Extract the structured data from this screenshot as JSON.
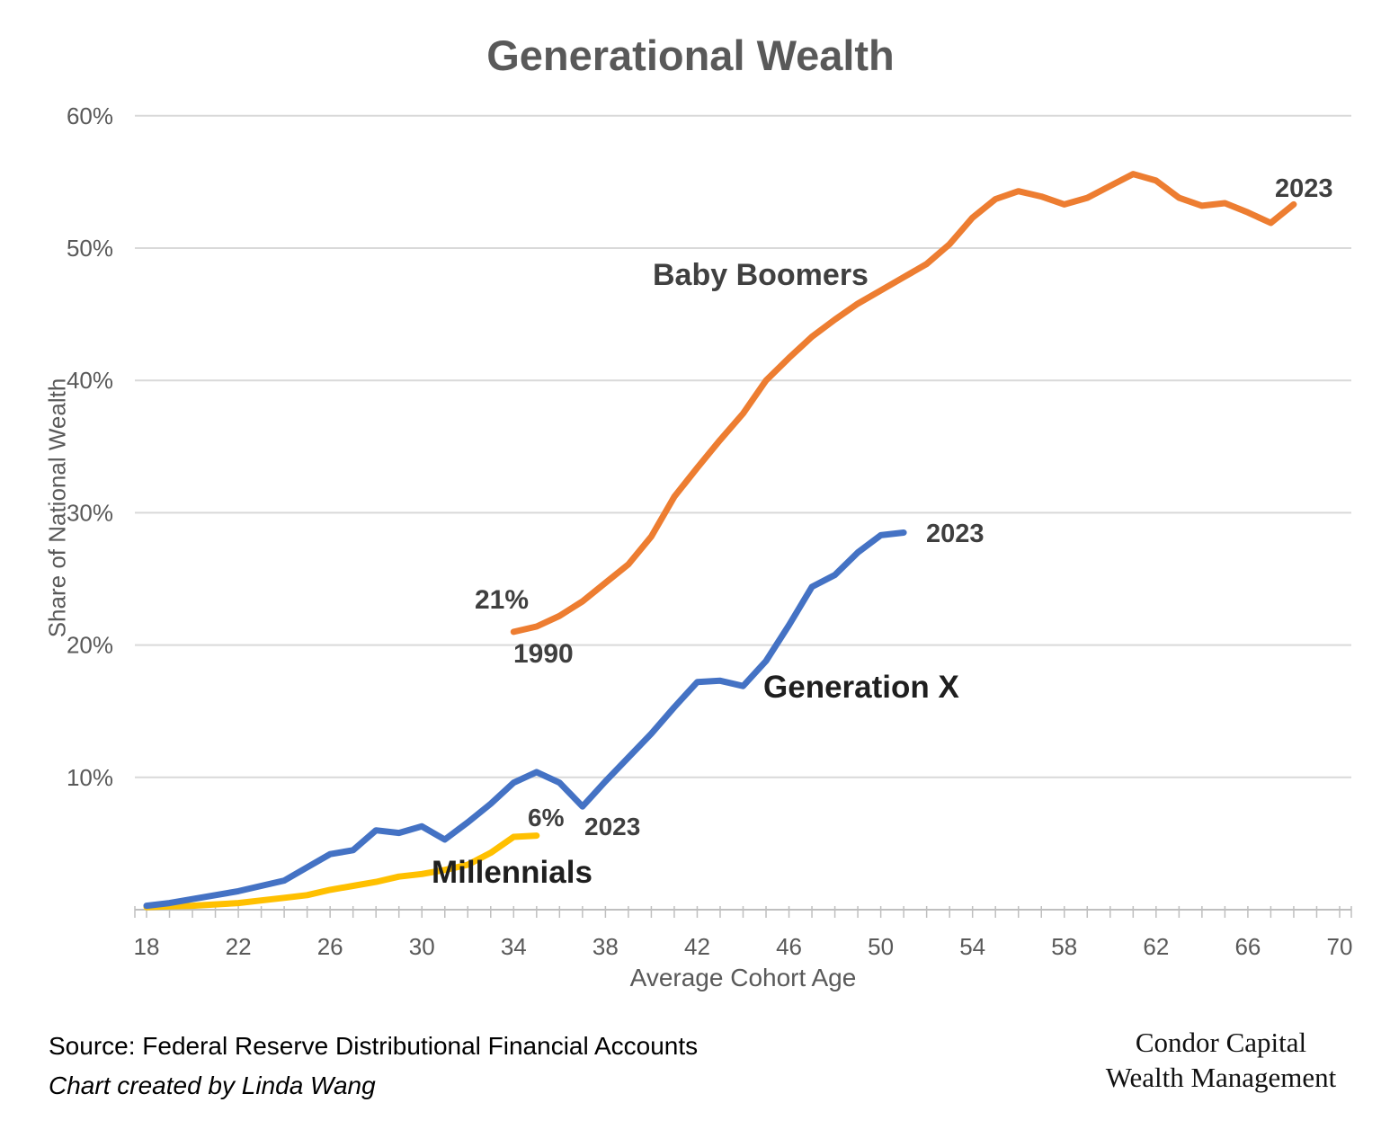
{
  "chart_data": {
    "type": "line",
    "title": "Generational Wealth",
    "xlabel": "Average Cohort Age",
    "ylabel": "Share of National Wealth",
    "xlim": [
      17.5,
      70.5
    ],
    "ylim": [
      0,
      60
    ],
    "xticks": [
      18,
      22,
      26,
      30,
      34,
      38,
      42,
      46,
      50,
      54,
      58,
      62,
      66,
      70
    ],
    "yticks": [
      10,
      20,
      30,
      40,
      50,
      60
    ],
    "grid": true,
    "legend_position": "inline-labels",
    "series": [
      {
        "name": "Millennials",
        "color": "#FFC000",
        "points": [
          [
            18,
            0.2
          ],
          [
            19,
            0.25
          ],
          [
            20,
            0.3
          ],
          [
            21,
            0.4
          ],
          [
            22,
            0.5
          ],
          [
            23,
            0.7
          ],
          [
            24,
            0.9
          ],
          [
            25,
            1.1
          ],
          [
            26,
            1.5
          ],
          [
            27,
            1.8
          ],
          [
            28,
            2.1
          ],
          [
            29,
            2.5
          ],
          [
            30,
            2.7
          ],
          [
            31,
            3.0
          ],
          [
            32,
            3.4
          ],
          [
            33,
            4.3
          ],
          [
            34,
            5.5
          ],
          [
            35,
            5.6
          ]
        ]
      },
      {
        "name": "Generation X",
        "color": "#4472C4",
        "points": [
          [
            18,
            0.3
          ],
          [
            19,
            0.5
          ],
          [
            20,
            0.8
          ],
          [
            21,
            1.1
          ],
          [
            22,
            1.4
          ],
          [
            23,
            1.8
          ],
          [
            24,
            2.2
          ],
          [
            25,
            3.2
          ],
          [
            26,
            4.2
          ],
          [
            27,
            4.5
          ],
          [
            28,
            6.0
          ],
          [
            29,
            5.8
          ],
          [
            30,
            6.3
          ],
          [
            31,
            5.3
          ],
          [
            32,
            6.6
          ],
          [
            33,
            8.0
          ],
          [
            34,
            9.6
          ],
          [
            35,
            10.4
          ],
          [
            36,
            9.6
          ],
          [
            37,
            7.8
          ],
          [
            38,
            9.7
          ],
          [
            39,
            11.5
          ],
          [
            40,
            13.3
          ],
          [
            41,
            15.3
          ],
          [
            42,
            17.2
          ],
          [
            43,
            17.3
          ],
          [
            44,
            16.9
          ],
          [
            45,
            18.8
          ],
          [
            46,
            21.5
          ],
          [
            47,
            24.4
          ],
          [
            48,
            25.3
          ],
          [
            49,
            27.0
          ],
          [
            50,
            28.3
          ],
          [
            51,
            28.5
          ]
        ]
      },
      {
        "name": "Baby Boomers",
        "color": "#ED7D31",
        "points": [
          [
            34,
            21
          ],
          [
            35,
            21.4
          ],
          [
            36,
            22.2
          ],
          [
            37,
            23.3
          ],
          [
            38,
            24.7
          ],
          [
            39,
            26.1
          ],
          [
            40,
            28.2
          ],
          [
            41,
            31.2
          ],
          [
            42,
            33.4
          ],
          [
            43,
            35.5
          ],
          [
            44,
            37.5
          ],
          [
            45,
            40
          ],
          [
            46,
            41.7
          ],
          [
            47,
            43.3
          ],
          [
            48,
            44.6
          ],
          [
            49,
            45.8
          ],
          [
            50,
            46.8
          ],
          [
            51,
            47.8
          ],
          [
            52,
            48.8
          ],
          [
            53,
            50.3
          ],
          [
            54,
            52.3
          ],
          [
            55,
            53.7
          ],
          [
            56,
            54.3
          ],
          [
            57,
            53.9
          ],
          [
            58,
            53.3
          ],
          [
            59,
            53.8
          ],
          [
            60,
            54.7
          ],
          [
            61,
            55.6
          ],
          [
            62,
            55.1
          ],
          [
            63,
            53.8
          ],
          [
            64,
            53.2
          ],
          [
            65,
            53.4
          ],
          [
            66,
            52.7
          ],
          [
            67,
            51.9
          ],
          [
            68,
            53.3
          ]
        ]
      }
    ],
    "annotations": {
      "boomers_label": "Baby Boomers",
      "genx_label": "Generation X",
      "millennials_label": "Millennials",
      "boomers_start_value": "21%",
      "boomers_start_year": "1990",
      "boomers_end_year": "2023",
      "genx_end_year": "2023",
      "millennials_end_value": "6%",
      "millennials_end_year": "2023"
    }
  },
  "footer": {
    "source": "Source: Federal Reserve Distributional Financial Accounts",
    "credit": "Chart created by Linda Wang",
    "brand_line1": "Condor Capital",
    "brand_line2": "Wealth Management"
  }
}
